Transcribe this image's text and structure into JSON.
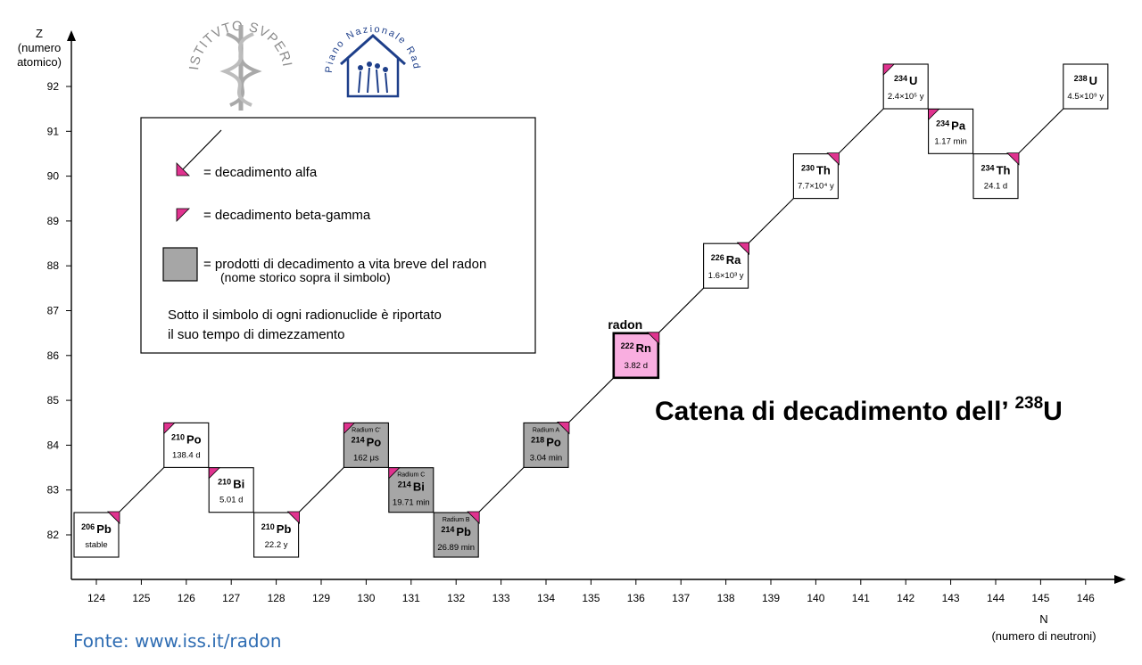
{
  "axes": {
    "y_label": [
      "Z",
      "(numero",
      "atomico)"
    ],
    "x_label": [
      "N",
      "(numero di neutroni)"
    ],
    "x_ticks": [
      124,
      125,
      126,
      127,
      128,
      129,
      130,
      131,
      132,
      133,
      134,
      135,
      136,
      137,
      138,
      139,
      140,
      141,
      142,
      143,
      144,
      145,
      146
    ],
    "y_ticks": [
      82,
      83,
      84,
      85,
      86,
      87,
      88,
      89,
      90,
      91,
      92
    ]
  },
  "title": {
    "prefix": "Catena di decadimento dell’ ",
    "mass": "238",
    "symbol": "U"
  },
  "legend": {
    "alpha": "= decadimento alfa",
    "beta": "= decadimento beta-gamma",
    "short_line1": "= prodotti di decadimento a vita breve del radon",
    "short_line2": "(nome storico sopra il simbolo)",
    "note_line1": "Sotto il simbolo di ogni radionuclide è riportato",
    "note_line2": "il suo tempo di dimezzamento"
  },
  "logos": {
    "iss_text": "ISTITVTO SVPERIORE DI SANITÀ",
    "pnr_text": "Piano Nazionale Radon"
  },
  "source": "Fonte: www.iss.it/radon",
  "colors": {
    "short_lived": "#a6a6a6",
    "radon": "#f9aee0",
    "marker": "#e0338f",
    "logo": "#1e3f8a"
  },
  "nuclides": [
    {
      "id": "u238",
      "mass": "238",
      "symbol": "U",
      "n": 146,
      "z": 92,
      "half_life": "4.5×10⁹ y",
      "type": "normal"
    },
    {
      "id": "th234",
      "mass": "234",
      "symbol": "Th",
      "n": 144,
      "z": 90,
      "half_life": "24.1 d",
      "type": "normal"
    },
    {
      "id": "pa234",
      "mass": "234",
      "symbol": "Pa",
      "n": 143,
      "z": 91,
      "half_life": "1.17 min",
      "type": "normal"
    },
    {
      "id": "u234",
      "mass": "234",
      "symbol": "U",
      "n": 142,
      "z": 92,
      "half_life": "2.4×10⁵ y",
      "type": "normal"
    },
    {
      "id": "th230",
      "mass": "230",
      "symbol": "Th",
      "n": 140,
      "z": 90,
      "half_life": "7.7×10⁴ y",
      "type": "normal"
    },
    {
      "id": "ra226",
      "mass": "226",
      "symbol": "Ra",
      "n": 138,
      "z": 88,
      "half_life": "1.6×10³ y",
      "type": "normal"
    },
    {
      "id": "rn222",
      "mass": "222",
      "symbol": "Rn",
      "n": 136,
      "z": 86,
      "half_life": "3.82 d",
      "type": "radon",
      "label": "radon"
    },
    {
      "id": "po218",
      "mass": "218",
      "symbol": "Po",
      "n": 134,
      "z": 84,
      "half_life": "3.04 min",
      "type": "short",
      "historic": "Radium A"
    },
    {
      "id": "pb214",
      "mass": "214",
      "symbol": "Pb",
      "n": 132,
      "z": 82,
      "half_life": "26.89 min",
      "type": "short",
      "historic": "Radium B"
    },
    {
      "id": "bi214",
      "mass": "214",
      "symbol": "Bi",
      "n": 131,
      "z": 83,
      "half_life": "19.71 min",
      "type": "short",
      "historic": "Radium C"
    },
    {
      "id": "po214",
      "mass": "214",
      "symbol": "Po",
      "n": 130,
      "z": 84,
      "half_life": "162 μs",
      "type": "short",
      "historic": "Radium C'"
    },
    {
      "id": "pb210",
      "mass": "210",
      "symbol": "Pb",
      "n": 128,
      "z": 82,
      "half_life": "22.2 y",
      "type": "normal"
    },
    {
      "id": "bi210",
      "mass": "210",
      "symbol": "Bi",
      "n": 127,
      "z": 83,
      "half_life": "5.01 d",
      "type": "normal"
    },
    {
      "id": "po210",
      "mass": "210",
      "symbol": "Po",
      "n": 126,
      "z": 84,
      "half_life": "138.4 d",
      "type": "normal"
    },
    {
      "id": "pb206",
      "mass": "206",
      "symbol": "Pb",
      "n": 124,
      "z": 82,
      "half_life": "stable",
      "type": "normal"
    }
  ],
  "decays": [
    {
      "from": "u238",
      "to": "th234",
      "mode": "alpha"
    },
    {
      "from": "th234",
      "to": "pa234",
      "mode": "beta"
    },
    {
      "from": "pa234",
      "to": "u234",
      "mode": "beta"
    },
    {
      "from": "u234",
      "to": "th230",
      "mode": "alpha"
    },
    {
      "from": "th230",
      "to": "ra226",
      "mode": "alpha"
    },
    {
      "from": "ra226",
      "to": "rn222",
      "mode": "alpha"
    },
    {
      "from": "rn222",
      "to": "po218",
      "mode": "alpha"
    },
    {
      "from": "po218",
      "to": "pb214",
      "mode": "alpha"
    },
    {
      "from": "pb214",
      "to": "bi214",
      "mode": "beta"
    },
    {
      "from": "bi214",
      "to": "po214",
      "mode": "beta"
    },
    {
      "from": "po214",
      "to": "pb210",
      "mode": "alpha"
    },
    {
      "from": "pb210",
      "to": "bi210",
      "mode": "beta"
    },
    {
      "from": "bi210",
      "to": "po210",
      "mode": "beta"
    },
    {
      "from": "po210",
      "to": "pb206",
      "mode": "alpha"
    }
  ]
}
